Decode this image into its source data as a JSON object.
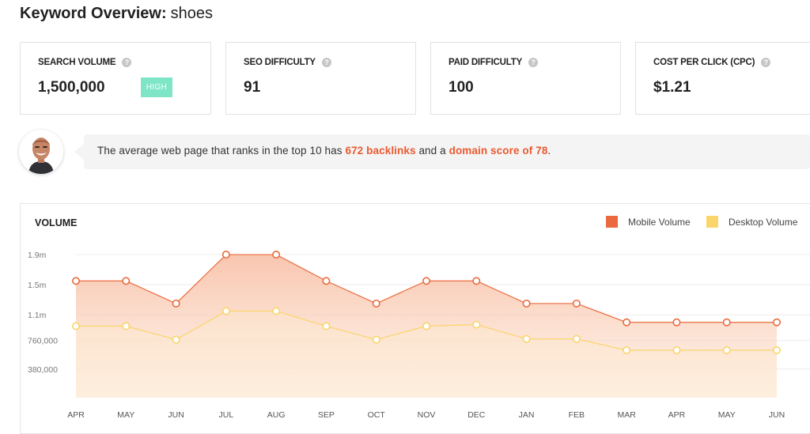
{
  "header": {
    "title_bold": "Keyword Overview:",
    "keyword": "shoes"
  },
  "stats": [
    {
      "label": "SEARCH VOLUME",
      "value": "1,500,000",
      "badge": "HIGH"
    },
    {
      "label": "SEO DIFFICULTY",
      "value": "91"
    },
    {
      "label": "PAID DIFFICULTY",
      "value": "100"
    },
    {
      "label": "COST PER CLICK (CPC)",
      "value": "$1.21"
    }
  ],
  "insight": {
    "prefix": "The average web page that ranks in the top 10 has",
    "backlinks": "672 backlinks",
    "middle": "and a",
    "domain_score": "domain score of 78",
    "suffix": "."
  },
  "icons": {
    "help": "question-circle-icon",
    "avatar": "person-avatar"
  },
  "colors": {
    "mobile": "#ea6a3d",
    "desktop": "#fad56a",
    "badge_high": "#7ee6c6",
    "highlight": "#ea5a31"
  },
  "chart_data": {
    "type": "area",
    "title": "VOLUME",
    "categories": [
      "APR",
      "MAY",
      "JUN",
      "JUL",
      "AUG",
      "SEP",
      "OCT",
      "NOV",
      "DEC",
      "JAN",
      "FEB",
      "MAR",
      "APR",
      "MAY",
      "JUN"
    ],
    "series": [
      {
        "name": "Mobile Volume",
        "values": [
          1550000,
          1550000,
          1250000,
          1900000,
          1900000,
          1550000,
          1250000,
          1550000,
          1550000,
          1250000,
          1250000,
          1000000,
          1000000,
          1000000,
          1000000
        ]
      },
      {
        "name": "Desktop Volume",
        "values": [
          950000,
          950000,
          770000,
          1150000,
          1150000,
          950000,
          770000,
          950000,
          970000,
          780000,
          780000,
          630000,
          630000,
          630000,
          630000
        ]
      }
    ],
    "yticks": [
      {
        "value": 380000,
        "label": "380,000"
      },
      {
        "value": 760000,
        "label": "760,000"
      },
      {
        "value": 1100000,
        "label": "1.1m"
      },
      {
        "value": 1500000,
        "label": "1.5m"
      },
      {
        "value": 1900000,
        "label": "1.9m"
      }
    ],
    "ylim": [
      0,
      2100000
    ],
    "grid": true,
    "legend_position": "top-right"
  }
}
